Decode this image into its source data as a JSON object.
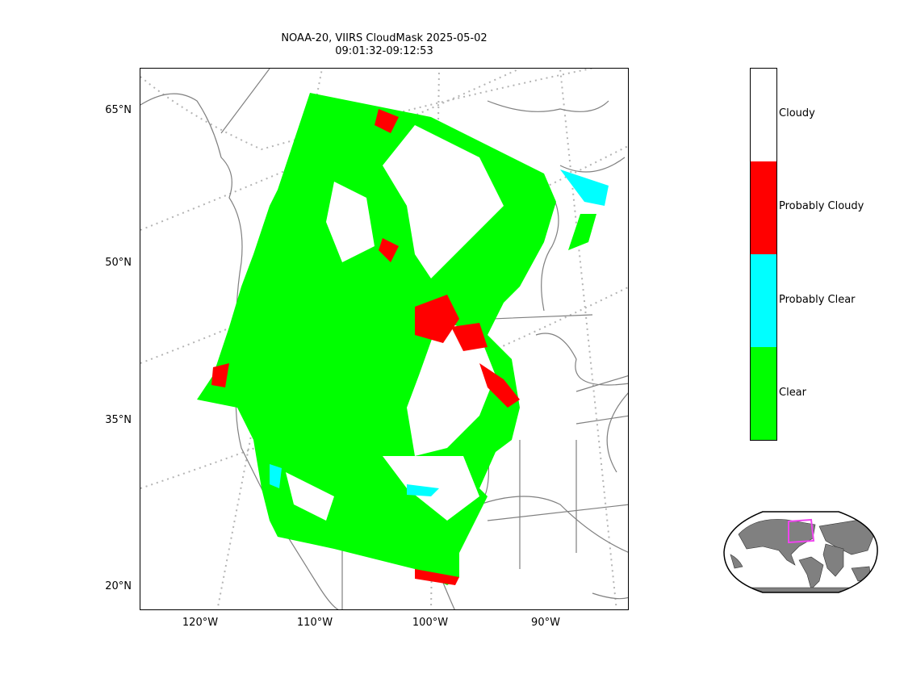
{
  "title": {
    "line1": "NOAA-20, VIIRS CloudMask 2025-05-02",
    "line2": "09:01:32-09:12:53"
  },
  "map": {
    "lat_labels": [
      "65°N",
      "50°N",
      "35°N",
      "20°N"
    ],
    "lon_labels": [
      "120°W",
      "110°W",
      "100°W",
      "90°W"
    ],
    "colors": {
      "clear": "#00ff00",
      "probably_clear": "#00ffff",
      "probably_cloudy": "#ff0000",
      "cloudy": "#ffffff",
      "coastline": "#808080",
      "graticule": "#b4b4b4"
    }
  },
  "colorbar": {
    "classes": [
      {
        "label": "Cloudy",
        "color": "#ffffff"
      },
      {
        "label": "Probably Cloudy",
        "color": "#ff0000"
      },
      {
        "label": "Probably Clear",
        "color": "#00ffff"
      },
      {
        "label": "Clear",
        "color": "#00ff00"
      }
    ]
  },
  "inset_map": {
    "land_color": "#808080",
    "highlight_color": "#ee44ee"
  }
}
